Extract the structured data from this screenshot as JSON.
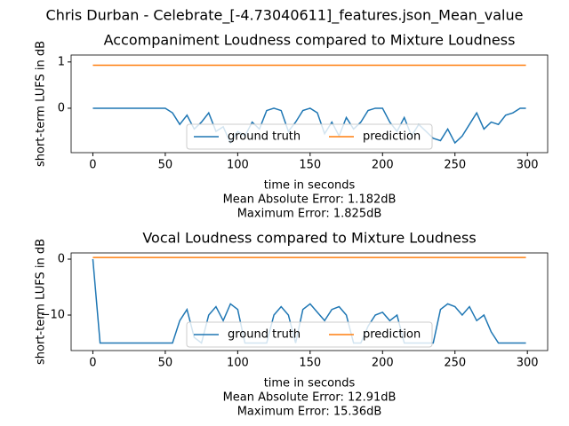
{
  "title": "Chris Durban - Celebrate_[-4.73040611]_features.json_Mean_value",
  "chart_data": [
    {
      "type": "line",
      "title": "Accompaniment Loudness compared to Mixture Loudness",
      "x_label": "time in seconds",
      "y_label": "short-term LUFS in dB",
      "annotations": [
        "Mean Absolute Error: 1.182dB",
        "Maximum Error: 1.825dB"
      ],
      "x": [
        0,
        5,
        10,
        15,
        20,
        25,
        30,
        35,
        40,
        45,
        50,
        55,
        60,
        65,
        70,
        75,
        80,
        85,
        90,
        95,
        100,
        105,
        110,
        115,
        120,
        125,
        130,
        135,
        140,
        145,
        150,
        155,
        160,
        165,
        170,
        175,
        180,
        185,
        190,
        195,
        200,
        205,
        210,
        215,
        220,
        225,
        230,
        235,
        240,
        245,
        250,
        255,
        260,
        265,
        270,
        275,
        280,
        285,
        290,
        295,
        299
      ],
      "series": [
        {
          "name": "ground truth",
          "color": "#1f77b4",
          "values": [
            0,
            0,
            0,
            0,
            0,
            0,
            0,
            0,
            0,
            0,
            0,
            -0.1,
            -0.35,
            -0.15,
            -0.45,
            -0.3,
            -0.1,
            -0.5,
            -0.4,
            -0.75,
            -0.5,
            -0.6,
            -0.3,
            -0.45,
            -0.05,
            0,
            -0.05,
            -0.5,
            -0.3,
            -0.05,
            0,
            -0.1,
            -0.55,
            -0.3,
            -0.6,
            -0.2,
            -0.45,
            -0.3,
            -0.05,
            0,
            0,
            -0.3,
            -0.5,
            -0.2,
            -0.6,
            -0.35,
            -0.5,
            -0.65,
            -0.7,
            -0.45,
            -0.75,
            -0.6,
            -0.35,
            -0.1,
            -0.45,
            -0.3,
            -0.35,
            -0.15,
            -0.1,
            0,
            0
          ]
        },
        {
          "name": "prediction",
          "color": "#ff7f0e",
          "values": [
            0.93,
            0.93,
            0.93,
            0.93,
            0.93,
            0.93,
            0.93,
            0.93,
            0.93,
            0.93,
            0.93,
            0.93,
            0.93,
            0.93,
            0.93,
            0.93,
            0.93,
            0.93,
            0.93,
            0.93,
            0.93,
            0.93,
            0.93,
            0.93,
            0.93,
            0.93,
            0.93,
            0.93,
            0.93,
            0.93,
            0.93,
            0.93,
            0.93,
            0.93,
            0.93,
            0.93,
            0.93,
            0.93,
            0.93,
            0.93,
            0.93,
            0.93,
            0.93,
            0.93,
            0.93,
            0.93,
            0.93,
            0.93,
            0.93,
            0.93,
            0.93,
            0.93,
            0.93,
            0.93,
            0.93,
            0.93,
            0.93,
            0.93,
            0.93,
            0.93,
            0.93
          ]
        }
      ],
      "xlim": [
        -15,
        314
      ],
      "xticks": [
        0,
        50,
        100,
        150,
        200,
        250,
        300
      ],
      "ylim": [
        -0.96,
        1.15
      ],
      "yticks": [
        0,
        1
      ],
      "legend": "lower center"
    },
    {
      "type": "line",
      "title": "Vocal Loudness compared to Mixture Loudness",
      "x_label": "time in seconds",
      "y_label": "short-term LUFS in dB",
      "annotations": [
        "Mean Absolute Error: 12.91dB",
        "Maximum Error: 15.36dB"
      ],
      "x": [
        0,
        5,
        10,
        15,
        20,
        25,
        30,
        35,
        40,
        45,
        50,
        55,
        60,
        65,
        70,
        75,
        80,
        85,
        90,
        95,
        100,
        105,
        110,
        115,
        120,
        125,
        130,
        135,
        140,
        145,
        150,
        155,
        160,
        165,
        170,
        175,
        180,
        185,
        190,
        195,
        200,
        205,
        210,
        215,
        220,
        225,
        230,
        235,
        240,
        245,
        250,
        255,
        260,
        265,
        270,
        275,
        280,
        285,
        290,
        295,
        299
      ],
      "series": [
        {
          "name": "ground truth",
          "color": "#1f77b4",
          "values": [
            0,
            -15,
            -15,
            -15,
            -15,
            -15,
            -15,
            -15,
            -15,
            -15,
            -15,
            -15,
            -11,
            -9,
            -14,
            -15,
            -10,
            -8.5,
            -11,
            -8,
            -9,
            -15,
            -15,
            -15,
            -15,
            -10,
            -8.5,
            -10,
            -15,
            -9,
            -8,
            -9.5,
            -11,
            -9,
            -8.5,
            -10,
            -15,
            -15,
            -12,
            -10,
            -9.5,
            -11,
            -10,
            -15,
            -15,
            -15,
            -15,
            -15,
            -9,
            -8,
            -8.5,
            -10,
            -8.5,
            -11,
            -10,
            -13,
            -15,
            -15,
            -15,
            -15,
            -15
          ]
        },
        {
          "name": "prediction",
          "color": "#ff7f0e",
          "values": [
            0.3,
            0.3,
            0.3,
            0.3,
            0.3,
            0.3,
            0.3,
            0.3,
            0.3,
            0.3,
            0.3,
            0.3,
            0.3,
            0.3,
            0.3,
            0.3,
            0.3,
            0.3,
            0.3,
            0.3,
            0.3,
            0.3,
            0.3,
            0.3,
            0.3,
            0.3,
            0.3,
            0.3,
            0.3,
            0.3,
            0.3,
            0.3,
            0.3,
            0.3,
            0.3,
            0.3,
            0.3,
            0.3,
            0.3,
            0.3,
            0.3,
            0.3,
            0.3,
            0.3,
            0.3,
            0.3,
            0.3,
            0.3,
            0.3,
            0.3,
            0.3,
            0.3,
            0.3,
            0.3,
            0.3,
            0.3,
            0.3,
            0.3,
            0.3,
            0.3,
            0.3
          ]
        }
      ],
      "xlim": [
        -15,
        314
      ],
      "xticks": [
        0,
        50,
        100,
        150,
        200,
        250,
        300
      ],
      "ylim": [
        -16.35,
        1.11
      ],
      "yticks": [
        {
          "value": -10,
          "label": "−10"
        },
        0
      ],
      "legend": "lower center"
    }
  ]
}
